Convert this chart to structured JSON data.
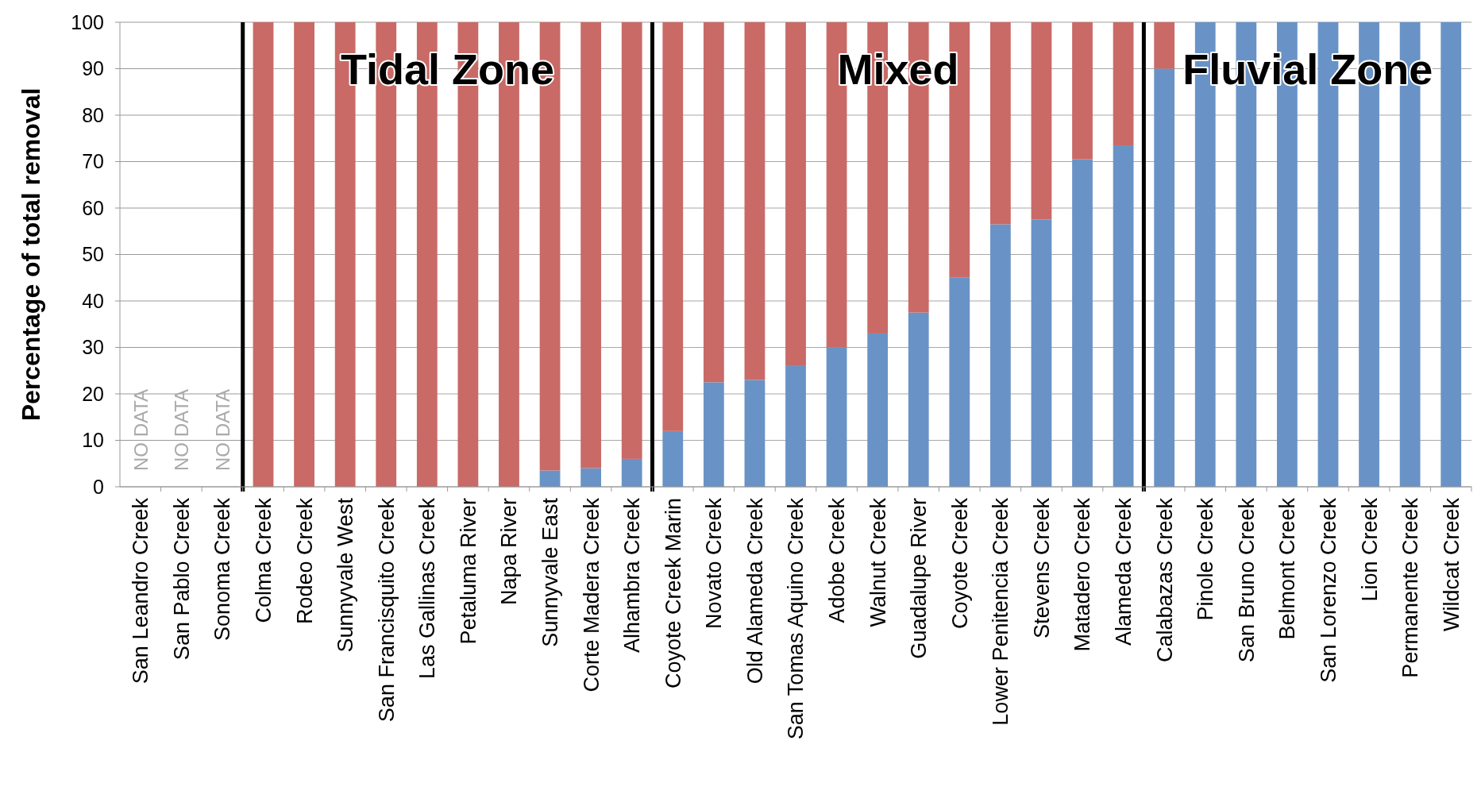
{
  "chart_data": {
    "type": "bar",
    "stacked": true,
    "ylabel": "Percentage of total removal",
    "categories": [
      "San Leandro Creek",
      "San Pablo Creek",
      "Sonoma Creek",
      "Colma Creek",
      "Rodeo Creek",
      "Sunnyvale West",
      "San Francisquito Creek",
      "Las Gallinas Creek",
      "Petaluma River",
      "Napa River",
      "Sunnyvale East",
      "Corte Madera Creek",
      "Alhambra Creek",
      "Coyote Creek Marin",
      "Novato Creek",
      "Old Alameda Creek",
      "San Tomas Aquino Creek",
      "Adobe Creek",
      "Walnut Creek",
      "Guadalupe River",
      "Coyote Creek",
      "Lower Penitencia Creek",
      "Stevens Creek",
      "Matadero Creek",
      "Alameda Creek",
      "Calabazas Creek",
      "Pinole Creek",
      "San Bruno Creek",
      "Belmont Creek",
      "San Lorenzo Creek",
      "Lion Creek",
      "Permanente Creek",
      "Wildcat Creek"
    ],
    "series": [
      {
        "color": "#4f81bd",
        "values": [
          null,
          null,
          null,
          0,
          0,
          0,
          0,
          0,
          0,
          0,
          3.5,
          4,
          6,
          12,
          22.5,
          23,
          26,
          30,
          33,
          37.5,
          45,
          56.5,
          57.5,
          70.5,
          73.5,
          90,
          100,
          100,
          100,
          100,
          100,
          100,
          100
        ],
        "value_labels": [
          "NO DATA",
          "NO DATA",
          "NO DATA",
          null,
          null,
          null,
          null,
          null,
          null,
          null,
          null,
          null,
          null,
          null,
          null,
          null,
          null,
          null,
          null,
          null,
          null,
          null,
          null,
          null,
          null,
          null,
          null,
          null,
          null,
          null,
          null,
          null,
          null
        ]
      },
      {
        "color": "#c0504d",
        "values": [
          null,
          null,
          null,
          100,
          100,
          100,
          100,
          100,
          100,
          100,
          96.5,
          96,
          94,
          88,
          77.5,
          77,
          74,
          70,
          67,
          62.5,
          55,
          43.5,
          42.5,
          29.5,
          26.5,
          10,
          0,
          0,
          0,
          0,
          0,
          0,
          0
        ]
      }
    ],
    "ylim": [
      0,
      100
    ],
    "yticks": [
      0,
      10,
      20,
      30,
      40,
      50,
      60,
      70,
      80,
      90,
      100
    ],
    "grid": "y",
    "bands": [
      {
        "axis": "x",
        "from": "Colma Creek",
        "to": "Alhambra Creek",
        "label": "Tidal Zone",
        "color": "#ffffff"
      },
      {
        "axis": "x",
        "from": "Coyote Creek Marin",
        "to": "Alameda Creek",
        "label": "Mixed",
        "color": "#ffffff"
      },
      {
        "axis": "x",
        "from": "Calabazas Creek",
        "to": "Wildcat Creek",
        "label": "Fluvial Zone",
        "color": "#ffffff"
      }
    ]
  }
}
